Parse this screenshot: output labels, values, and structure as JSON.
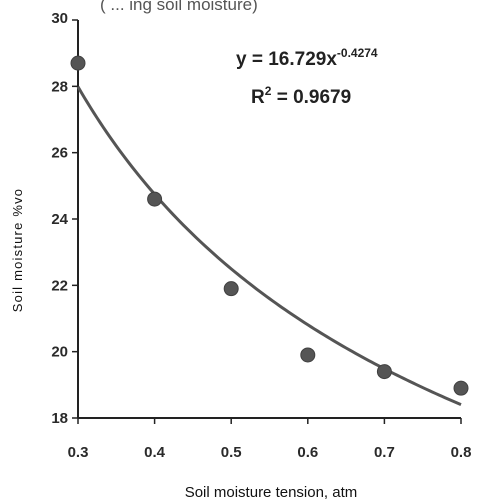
{
  "chart_data": {
    "type": "scatter",
    "top_partial_text": "( ... ing soil moisture)",
    "xlabel": "Soil moisture tension, atm",
    "ylabel": "Soil moisture %vo",
    "xlim": [
      0.3,
      0.8
    ],
    "ylim": [
      18,
      30
    ],
    "x_ticks": [
      "0.3",
      "0.4",
      "0.5",
      "0.6",
      "0.7",
      "0.8"
    ],
    "y_ticks": [
      "18",
      "20",
      "22",
      "24",
      "26",
      "28",
      "30"
    ],
    "points": [
      {
        "x": 0.3,
        "y": 28.7
      },
      {
        "x": 0.4,
        "y": 24.6
      },
      {
        "x": 0.5,
        "y": 21.9
      },
      {
        "x": 0.6,
        "y": 19.9
      },
      {
        "x": 0.7,
        "y": 19.4
      },
      {
        "x": 0.8,
        "y": 18.9
      }
    ],
    "trendline": {
      "type": "power",
      "a": 16.729,
      "b": -0.4274
    },
    "equation": {
      "prefix": "y = 16.729x",
      "exponent": "-0.4274"
    },
    "r_squared": {
      "prefix": "R",
      "sup": "2",
      "suffix": " = 0.9679"
    },
    "colors": {
      "marker": "#555555",
      "curve": "#555555",
      "axis": "#222222",
      "text": "#222222"
    }
  }
}
